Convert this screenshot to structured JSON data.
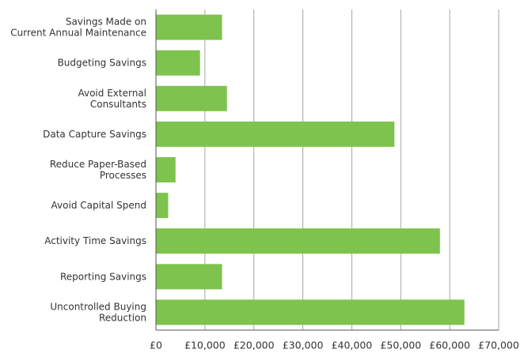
{
  "chart_data": {
    "type": "bar",
    "orientation": "horizontal",
    "title": "",
    "xlabel": "",
    "ylabel": "",
    "categories": [
      [
        "Savings Made on",
        "Current Annual Maintenance"
      ],
      [
        "Budgeting Savings"
      ],
      [
        "Avoid External",
        "Consultants"
      ],
      [
        "Data Capture Savings"
      ],
      [
        "Reduce Paper-Based",
        "Processes"
      ],
      [
        "Avoid Capital Spend"
      ],
      [
        "Activity Time Savings"
      ],
      [
        "Reporting Savings"
      ],
      [
        "Uncontrolled Buying",
        "Reduction"
      ]
    ],
    "values": [
      13500,
      9000,
      14500,
      48700,
      4000,
      2500,
      58000,
      13500,
      63000
    ],
    "xlim": [
      0,
      70000
    ],
    "xticks": [
      0,
      10000,
      20000,
      30000,
      40000,
      50000,
      60000,
      70000
    ],
    "xtick_labels": [
      "£0",
      "£10,000",
      "£20,000",
      "£30,000",
      "£40,000",
      "£50,000",
      "£60,000",
      "£70,000"
    ],
    "grid": "vertical",
    "legend": "none",
    "colors": {
      "bar": "#7dc34d",
      "grid": "#a6a6a6",
      "axis": "#555555",
      "text": "#333333"
    }
  }
}
